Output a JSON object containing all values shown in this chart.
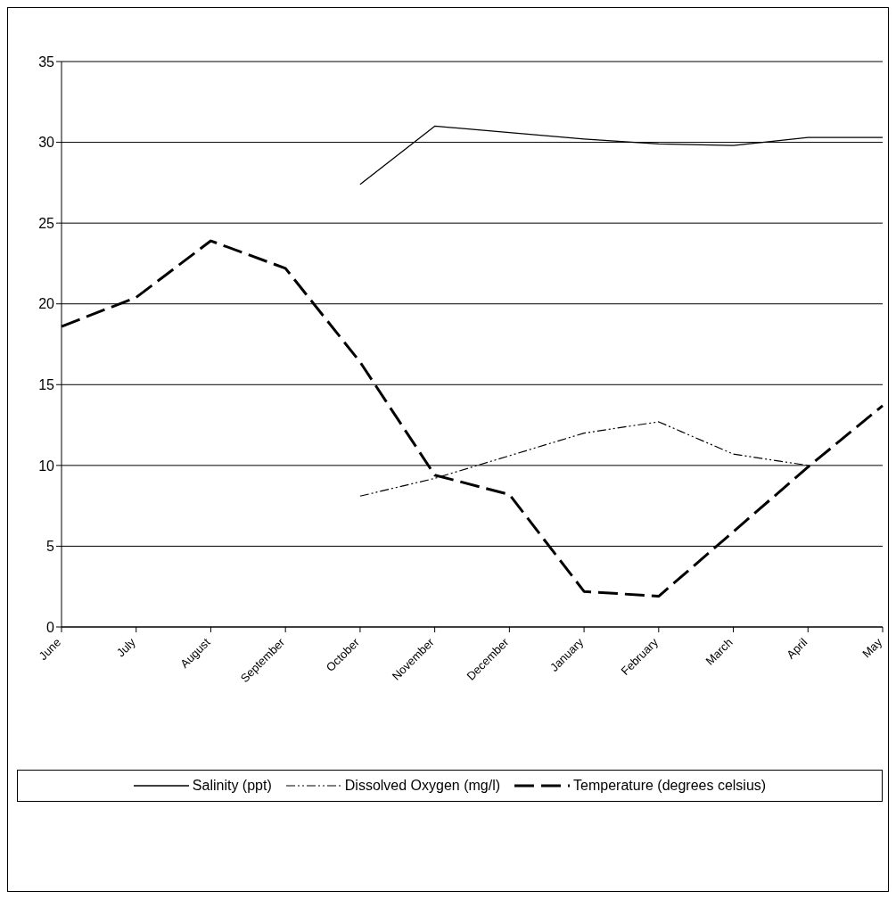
{
  "chart_data": {
    "type": "line",
    "categories": [
      "June",
      "July",
      "August",
      "September",
      "October",
      "November",
      "December",
      "January",
      "February",
      "March",
      "April",
      "May"
    ],
    "series": [
      {
        "name": "Salinity (ppt)",
        "color": "#000000",
        "line_style": "solid",
        "values": [
          null,
          null,
          null,
          null,
          27.4,
          31.0,
          30.6,
          30.2,
          29.9,
          29.8,
          30.3,
          30.3
        ]
      },
      {
        "name": "Dissolved Oxygen (mg/l)",
        "color": "#000000",
        "line_style": "dotted",
        "values": [
          null,
          null,
          null,
          null,
          8.1,
          9.2,
          10.6,
          12.0,
          12.7,
          10.7,
          10.0,
          null
        ]
      },
      {
        "name": "Temperature (degrees celsius)",
        "color": "#000000",
        "line_style": "dashed",
        "values": [
          18.6,
          20.4,
          23.9,
          22.2,
          16.4,
          9.4,
          8.2,
          2.2,
          1.9,
          5.9,
          9.9,
          13.7
        ]
      }
    ],
    "ylim": [
      0,
      35
    ],
    "yticks": [
      0,
      5,
      10,
      15,
      20,
      25,
      30,
      35
    ],
    "grid": "y",
    "legend": "bottom",
    "marker": "none"
  }
}
